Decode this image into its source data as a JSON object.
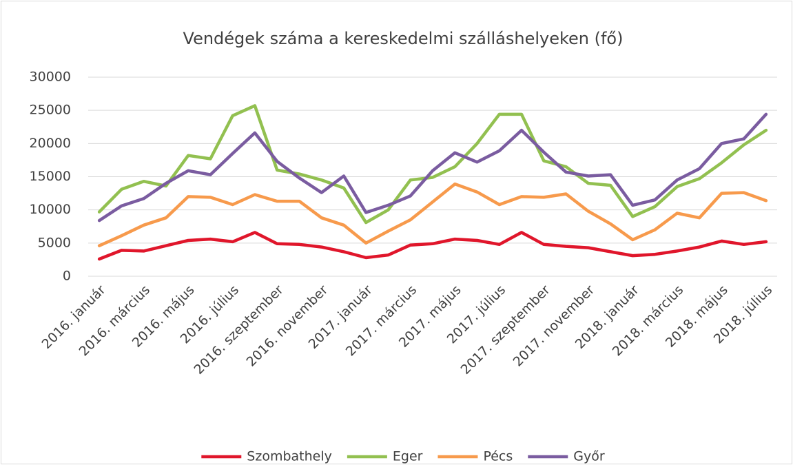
{
  "chart_data": {
    "type": "line",
    "title": "Vendégek száma a kereskedelmi szálláshelyeken (fő)",
    "categories": [
      "2016. január",
      null,
      "2016. március",
      null,
      "2016. május",
      null,
      "2016. július",
      null,
      "2016. szeptember",
      null,
      "2016. november",
      null,
      "2017. január",
      null,
      "2017. március",
      null,
      "2017. május",
      null,
      "2017. július",
      null,
      "2017. szeptember",
      null,
      "2017. november",
      null,
      "2018. január",
      null,
      "2018. március",
      null,
      "2018. május",
      null,
      "2018. július"
    ],
    "series": [
      {
        "name": "Szombathely",
        "color": "#e0162b",
        "values": [
          2600,
          3900,
          3800,
          4600,
          5400,
          5600,
          5200,
          6600,
          4900,
          4800,
          4400,
          3700,
          2800,
          3200,
          4700,
          4900,
          5600,
          5400,
          4800,
          6600,
          4800,
          4500,
          4300,
          3700,
          3100,
          3300,
          3800,
          4400,
          5300,
          4800,
          5200
        ]
      },
      {
        "name": "Eger",
        "color": "#92c050",
        "values": [
          9700,
          13100,
          14300,
          13600,
          18200,
          17700,
          24200,
          25700,
          16000,
          15400,
          14500,
          13300,
          8100,
          10000,
          14500,
          14900,
          16500,
          20000,
          24400,
          24400,
          17400,
          16500,
          14000,
          13700,
          9000,
          10500,
          13500,
          14700,
          17100,
          19800,
          22000
        ]
      },
      {
        "name": "Pécs",
        "color": "#f79a4c",
        "values": [
          4600,
          6100,
          7700,
          8800,
          12000,
          11900,
          10800,
          12300,
          11300,
          11300,
          8800,
          7700,
          5000,
          6800,
          8500,
          11200,
          13900,
          12700,
          10800,
          12000,
          11900,
          12400,
          9800,
          7900,
          5500,
          7000,
          9500,
          8800,
          12500,
          12600,
          11400
        ]
      },
      {
        "name": "Győr",
        "color": "#7a5ca0",
        "values": [
          8400,
          10600,
          11700,
          14000,
          15900,
          15300,
          18500,
          21600,
          17300,
          14800,
          12600,
          15100,
          9600,
          10700,
          12100,
          15900,
          18600,
          17200,
          18900,
          22000,
          18700,
          15700,
          15100,
          15300,
          10700,
          11500,
          14500,
          16200,
          20000,
          20700,
          24400
        ]
      }
    ],
    "ylim": [
      0,
      30000
    ],
    "yticks": [
      0,
      5000,
      10000,
      15000,
      20000,
      25000,
      30000
    ],
    "grid": true,
    "legend": "bottom"
  }
}
